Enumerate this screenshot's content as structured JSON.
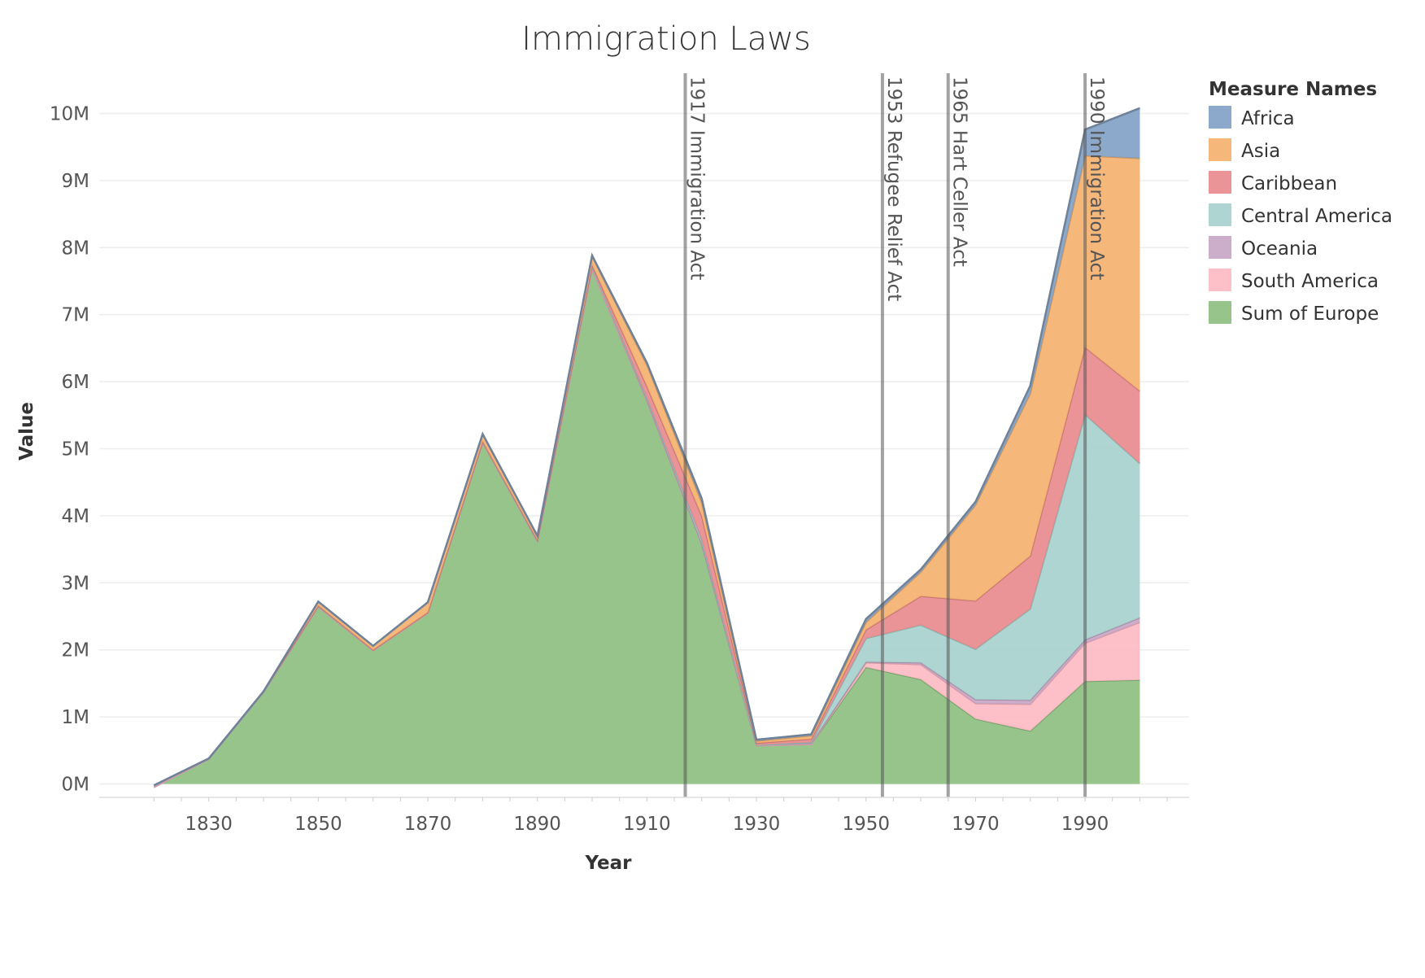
{
  "chart_data": {
    "type": "area",
    "stacked": true,
    "title": "Immigration Laws",
    "xlabel": "Year",
    "ylabel": "Value",
    "x": [
      1820,
      1830,
      1840,
      1850,
      1860,
      1870,
      1880,
      1890,
      1900,
      1910,
      1920,
      1930,
      1940,
      1950,
      1960,
      1970,
      1980,
      1990,
      2000
    ],
    "xticks": [
      1830,
      1850,
      1870,
      1890,
      1910,
      1930,
      1950,
      1970,
      1990
    ],
    "xlim": [
      1810,
      2009
    ],
    "ylim": [
      -200000,
      10600000
    ],
    "yticks": [
      0,
      1000000,
      2000000,
      3000000,
      4000000,
      5000000,
      6000000,
      7000000,
      8000000,
      9000000,
      10000000
    ],
    "ytick_labels": [
      "0M",
      "1M",
      "2M",
      "3M",
      "4M",
      "5M",
      "6M",
      "7M",
      "8M",
      "9M",
      "10M"
    ],
    "grid": true,
    "legend_title": "Measure Names",
    "legend_position": "right",
    "legend": [
      "Africa",
      "Asia",
      "Caribbean",
      "Central America",
      "Oceania",
      "South America",
      "Sum of Europe"
    ],
    "series": [
      {
        "name": "Sum of Europe",
        "color": "#8bbe7e",
        "values": [
          -50000,
          370000,
          1370000,
          2640000,
          1990000,
          2550000,
          5090000,
          3620000,
          7670000,
          5710000,
          3580000,
          570000,
          590000,
          1740000,
          1560000,
          970000,
          790000,
          1530000,
          1550000
        ]
      },
      {
        "name": "South America",
        "color": "#fdb8c2",
        "values": [
          0,
          0,
          0,
          0,
          0,
          0,
          0,
          0,
          0,
          0,
          0,
          0,
          0,
          70000,
          220000,
          230000,
          400000,
          570000,
          860000
        ]
      },
      {
        "name": "Oceania",
        "color": "#c6a4c4",
        "values": [
          30000,
          10000,
          10000,
          10000,
          10000,
          10000,
          10000,
          10000,
          40000,
          20000,
          10000,
          10000,
          20000,
          10000,
          30000,
          60000,
          60000,
          50000,
          70000
        ]
      },
      {
        "name": "Central America",
        "color": "#a5d0cc",
        "values": [
          0,
          0,
          0,
          0,
          0,
          0,
          0,
          0,
          0,
          30000,
          60000,
          0,
          10000,
          350000,
          560000,
          750000,
          1360000,
          3360000,
          2300000
        ]
      },
      {
        "name": "Caribbean",
        "color": "#e8888c",
        "values": [
          0,
          0,
          0,
          10000,
          0,
          0,
          10000,
          10000,
          30000,
          170000,
          350000,
          30000,
          50000,
          130000,
          430000,
          720000,
          790000,
          1000000,
          1080000
        ]
      },
      {
        "name": "Asia",
        "color": "#f4b06c",
        "values": [
          0,
          0,
          0,
          60000,
          60000,
          150000,
          110000,
          60000,
          130000,
          320000,
          200000,
          30000,
          50000,
          110000,
          360000,
          1430000,
          2420000,
          2860000,
          3470000
        ]
      },
      {
        "name": "Africa",
        "color": "#7f9fc4",
        "values": [
          0,
          0,
          0,
          0,
          0,
          0,
          0,
          0,
          10000,
          30000,
          60000,
          20000,
          20000,
          50000,
          40000,
          50000,
          120000,
          390000,
          750000
        ]
      }
    ],
    "annotations": [
      {
        "x": 1917,
        "label": "1917 Immigration Act"
      },
      {
        "x": 1953,
        "label": "1953 Refugee Relief Act"
      },
      {
        "x": 1965,
        "label": "1965 Hart Celler Act"
      },
      {
        "x": 1990,
        "label": "1990 Immigration Act"
      }
    ]
  }
}
